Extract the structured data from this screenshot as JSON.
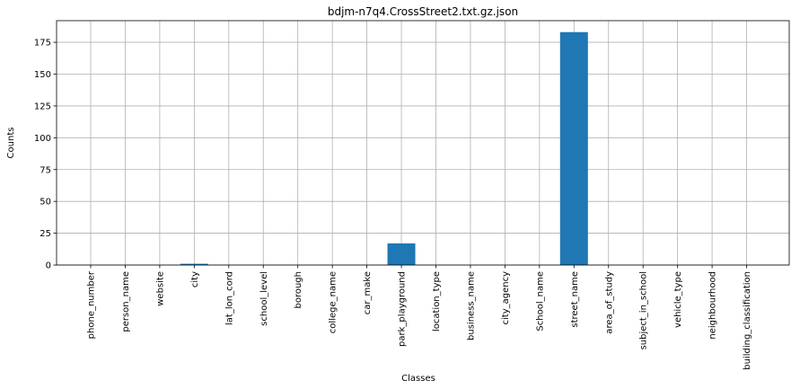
{
  "chart_data": {
    "type": "bar",
    "title": "bdjm-n7q4.CrossStreet2.txt.gz.json",
    "xlabel": "Classes",
    "ylabel": "Counts",
    "categories": [
      "phone_number",
      "person_name",
      "website",
      "city",
      "lat_lon_cord",
      "school_level",
      "borough",
      "college_name",
      "car_make",
      "park_playground",
      "location_type",
      "business_name",
      "city_agency",
      "School_name",
      "street_name",
      "area_of_study",
      "subject_in_school",
      "vehicle_type",
      "neighbourhood",
      "building_classification"
    ],
    "values": [
      0,
      0,
      0,
      1,
      0,
      0,
      0,
      0,
      0,
      17,
      0,
      0,
      0,
      0,
      183,
      0,
      0,
      0,
      0,
      0
    ],
    "ylim": [
      0,
      192
    ],
    "yticks": [
      0,
      25,
      50,
      75,
      100,
      125,
      150,
      175
    ],
    "grid": true,
    "bar_color": "#1f77b4",
    "legend": "none"
  }
}
